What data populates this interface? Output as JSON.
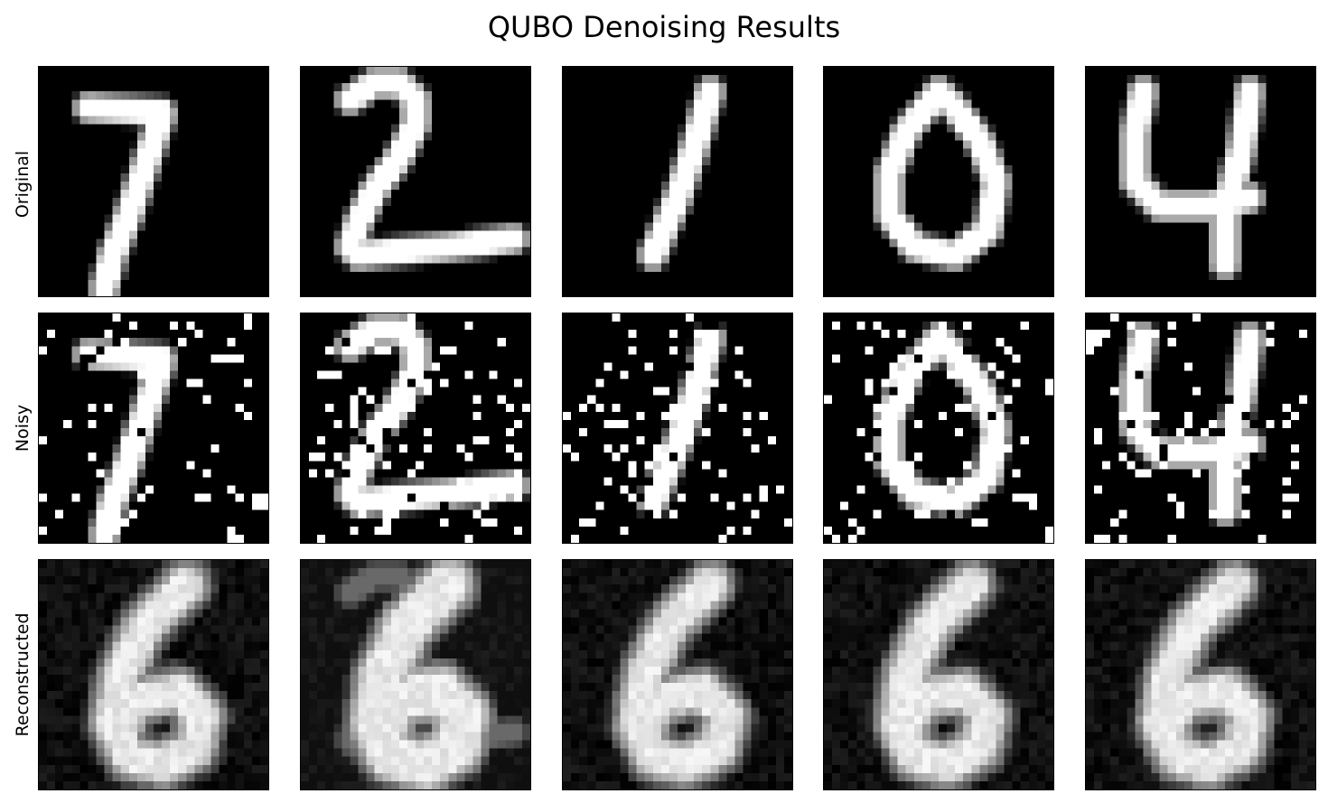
{
  "figure": {
    "title": "QUBO Denoising Results"
  },
  "rows": [
    {
      "label": "Original"
    },
    {
      "label": "Noisy"
    },
    {
      "label": "Reconstructed"
    }
  ],
  "original_digits": [
    "7",
    "2",
    "1",
    "0",
    "4"
  ],
  "reconstructed_digit": "6",
  "colormap": "gray",
  "noise": "white salt pixels on black background"
}
